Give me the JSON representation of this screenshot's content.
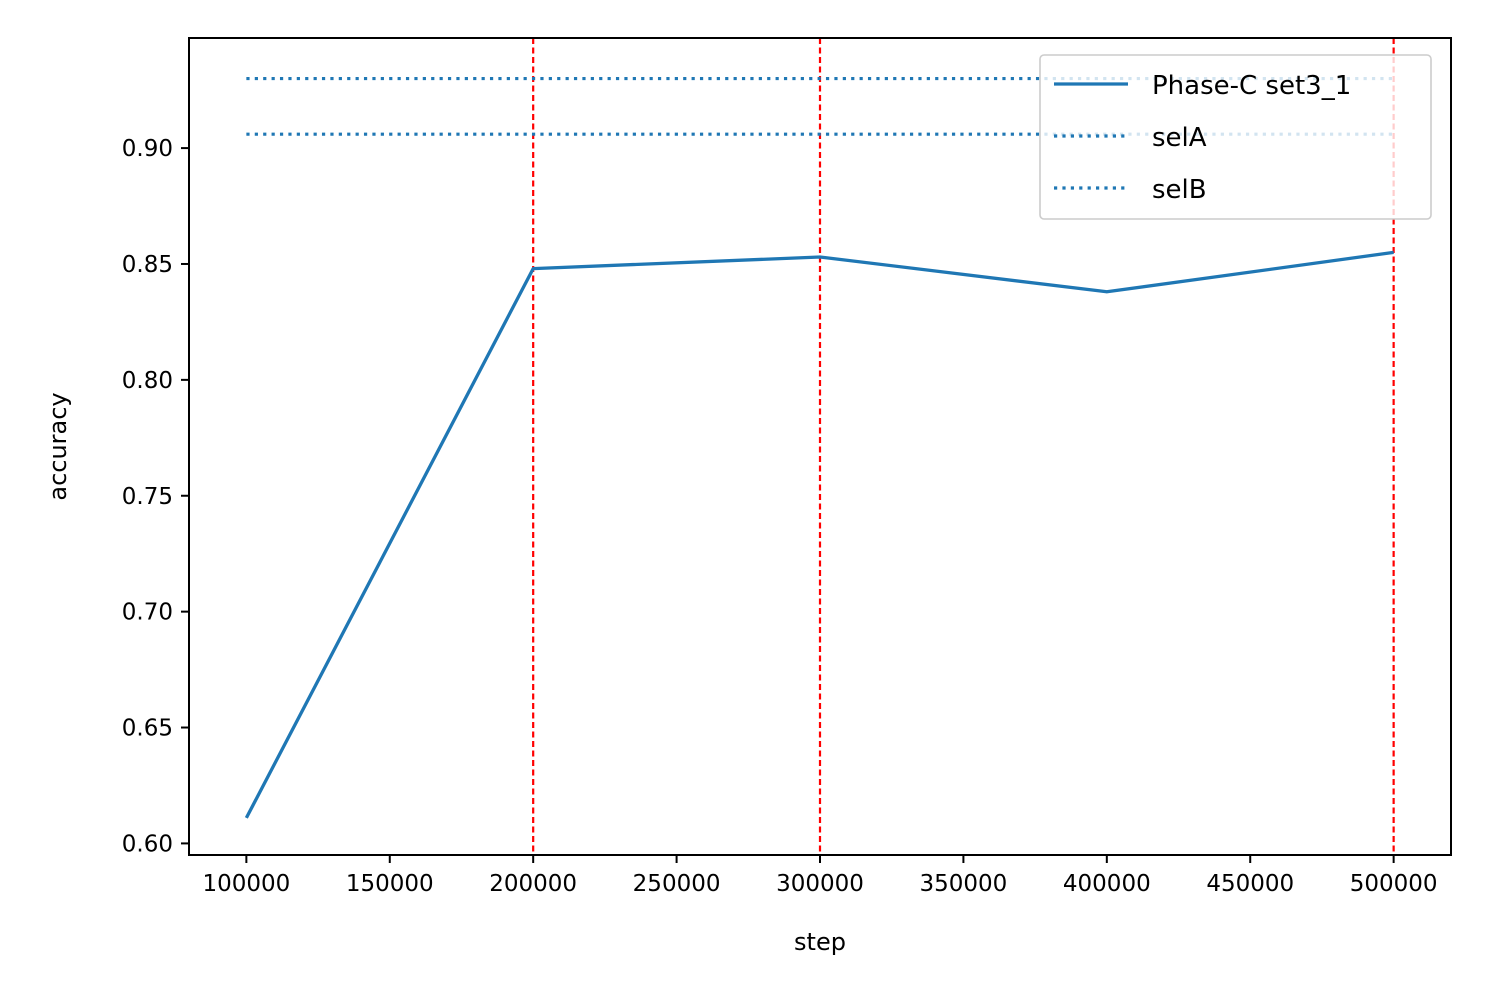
{
  "chart_data": {
    "type": "line",
    "title": "",
    "xlabel": "step",
    "ylabel": "accuracy",
    "xlim": [
      80000,
      520000
    ],
    "ylim": [
      0.595,
      0.9475
    ],
    "x_ticks": [
      100000,
      150000,
      200000,
      250000,
      300000,
      350000,
      400000,
      450000,
      500000
    ],
    "x_tick_labels": [
      "100000",
      "150000",
      "200000",
      "250000",
      "300000",
      "350000",
      "400000",
      "450000",
      "500000"
    ],
    "y_ticks": [
      0.6,
      0.65,
      0.7,
      0.75,
      0.8,
      0.85,
      0.9
    ],
    "y_tick_labels": [
      "0.60",
      "0.65",
      "0.70",
      "0.75",
      "0.80",
      "0.85",
      "0.90"
    ],
    "grid": false,
    "series": [
      {
        "name": "Phase-C set3_1",
        "style": "solid",
        "color": "#1f77b4",
        "x": [
          100000,
          200000,
          300000,
          400000,
          500000
        ],
        "values": [
          0.611,
          0.848,
          0.853,
          0.838,
          0.855
        ]
      }
    ],
    "reference_lines": [
      {
        "name": "selA",
        "style": "dotted",
        "color": "#1f77b4",
        "y": 0.93,
        "x_range": [
          100000,
          500000
        ]
      },
      {
        "name": "selB",
        "style": "dotted",
        "color": "#1f77b4",
        "y": 0.906,
        "x_range": [
          100000,
          500000
        ]
      }
    ],
    "vertical_markers": {
      "color": "#ff0000",
      "style": "dashed",
      "x": [
        200000,
        300000,
        500000
      ]
    },
    "legend": {
      "position": "top-right",
      "entries": [
        {
          "label": "Phase-C set3_1",
          "style": "solid",
          "color": "#1f77b4"
        },
        {
          "label": "selA",
          "style": "dotted",
          "color": "#1f77b4"
        },
        {
          "label": "selB",
          "style": "dotted",
          "color": "#1f77b4"
        }
      ]
    }
  }
}
